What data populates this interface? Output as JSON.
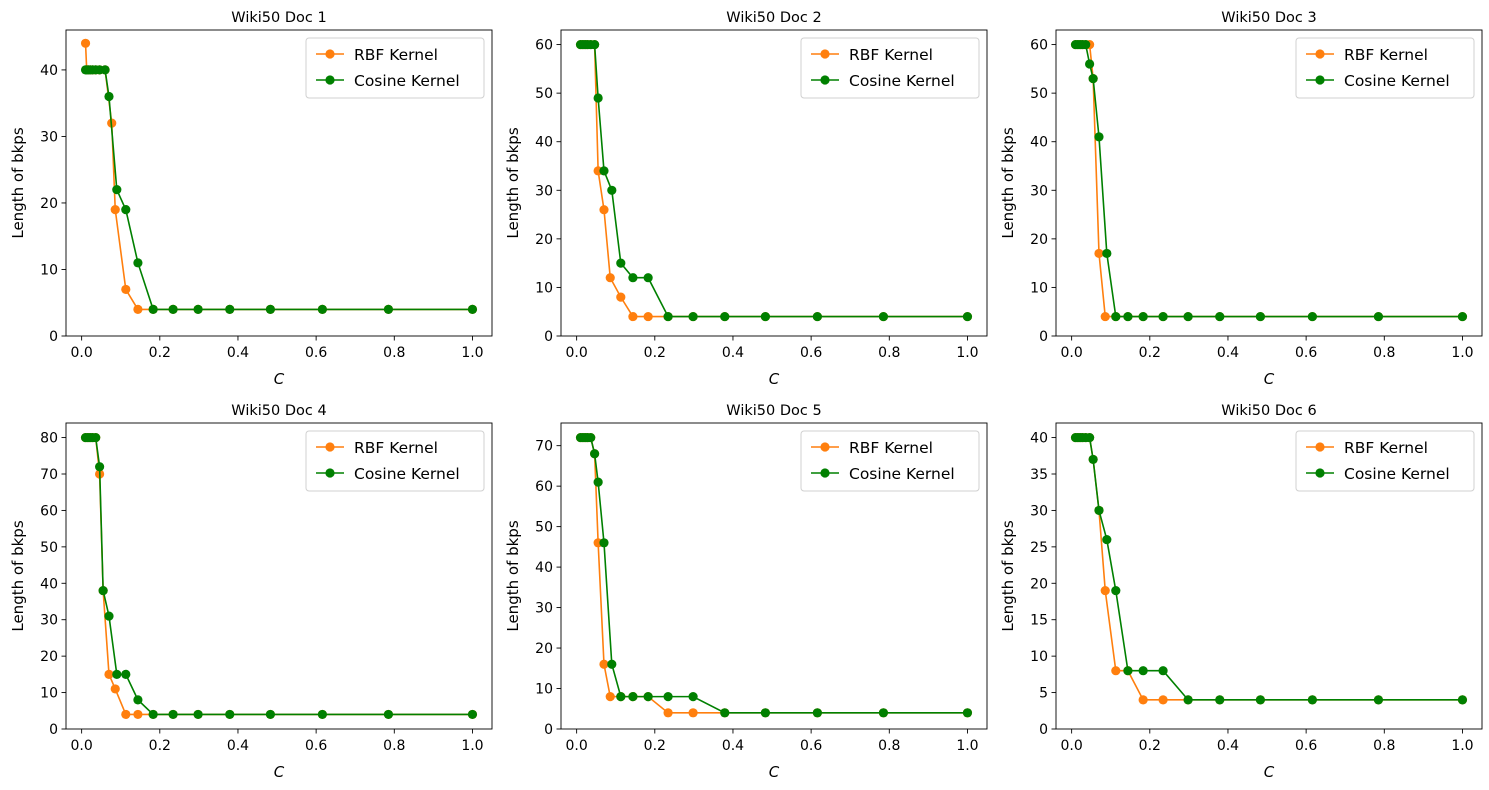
{
  "colors": {
    "rbf": "#ff7f0e",
    "cosine": "#008000"
  },
  "chart_data": [
    {
      "type": "line",
      "title": "Wiki50 Doc 1",
      "xlabel": "C",
      "ylabel": "Length of bkps",
      "xlim": [
        -0.04,
        1.05
      ],
      "ylim": [
        0,
        46
      ],
      "xticks": [
        "0.0",
        "0.2",
        "0.4",
        "0.6",
        "0.8",
        "1.0"
      ],
      "yticks": [
        "0",
        "10",
        "20",
        "30",
        "40"
      ],
      "legend_position": "upper right",
      "series": [
        {
          "name": "RBF Kernel",
          "x": [
            0.01,
            0.013,
            0.017,
            0.022,
            0.028,
            0.036,
            0.046,
            0.06,
            0.077,
            0.086,
            0.113,
            0.144,
            0.183,
            0.234,
            0.298,
            0.379,
            0.483,
            0.616,
            0.785,
            1.0
          ],
          "y": [
            44,
            40,
            40,
            40,
            40,
            40,
            40,
            40,
            32,
            19,
            7,
            4,
            4,
            4,
            4,
            4,
            4,
            4,
            4,
            4
          ]
        },
        {
          "name": "Cosine Kernel",
          "x": [
            0.01,
            0.013,
            0.017,
            0.022,
            0.028,
            0.036,
            0.046,
            0.06,
            0.07,
            0.09,
            0.113,
            0.144,
            0.183,
            0.234,
            0.298,
            0.379,
            0.483,
            0.616,
            0.785,
            1.0
          ],
          "y": [
            40,
            40,
            40,
            40,
            40,
            40,
            40,
            40,
            36,
            22,
            19,
            11,
            4,
            4,
            4,
            4,
            4,
            4,
            4,
            4
          ]
        }
      ]
    },
    {
      "type": "line",
      "title": "Wiki50 Doc 2",
      "xlabel": "C",
      "ylabel": "Length of bkps",
      "xlim": [
        -0.04,
        1.05
      ],
      "ylim": [
        0,
        63
      ],
      "xticks": [
        "0.0",
        "0.2",
        "0.4",
        "0.6",
        "0.8",
        "1.0"
      ],
      "yticks": [
        "0",
        "10",
        "20",
        "30",
        "40",
        "50",
        "60"
      ],
      "legend_position": "upper right",
      "series": [
        {
          "name": "RBF Kernel",
          "x": [
            0.01,
            0.016,
            0.022,
            0.028,
            0.036,
            0.046,
            0.055,
            0.07,
            0.086,
            0.113,
            0.144,
            0.183,
            0.234,
            0.298,
            0.379,
            0.483,
            0.616,
            0.785,
            1.0
          ],
          "y": [
            60,
            60,
            60,
            60,
            60,
            60,
            34,
            26,
            12,
            8,
            4,
            4,
            4,
            4,
            4,
            4,
            4,
            4,
            4
          ]
        },
        {
          "name": "Cosine Kernel",
          "x": [
            0.01,
            0.016,
            0.022,
            0.028,
            0.036,
            0.046,
            0.055,
            0.07,
            0.09,
            0.113,
            0.144,
            0.183,
            0.234,
            0.298,
            0.379,
            0.483,
            0.616,
            0.785,
            1.0
          ],
          "y": [
            60,
            60,
            60,
            60,
            60,
            60,
            49,
            34,
            30,
            15,
            12,
            12,
            4,
            4,
            4,
            4,
            4,
            4,
            4
          ]
        }
      ]
    },
    {
      "type": "line",
      "title": "Wiki50 Doc 3",
      "xlabel": "C",
      "ylabel": "Length of bkps",
      "xlim": [
        -0.04,
        1.05
      ],
      "ylim": [
        0,
        63
      ],
      "xticks": [
        "0.0",
        "0.2",
        "0.4",
        "0.6",
        "0.8",
        "1.0"
      ],
      "yticks": [
        "0",
        "10",
        "20",
        "30",
        "40",
        "50",
        "60"
      ],
      "legend_position": "upper right",
      "series": [
        {
          "name": "RBF Kernel",
          "x": [
            0.01,
            0.016,
            0.022,
            0.028,
            0.036,
            0.046,
            0.055,
            0.07,
            0.086,
            0.113,
            0.144,
            0.183,
            0.234,
            0.298,
            0.379,
            0.483,
            0.616,
            0.785,
            1.0
          ],
          "y": [
            60,
            60,
            60,
            60,
            60,
            60,
            53,
            17,
            4,
            4,
            4,
            4,
            4,
            4,
            4,
            4,
            4,
            4,
            4
          ]
        },
        {
          "name": "Cosine Kernel",
          "x": [
            0.01,
            0.016,
            0.022,
            0.028,
            0.036,
            0.046,
            0.055,
            0.07,
            0.09,
            0.113,
            0.144,
            0.183,
            0.234,
            0.298,
            0.379,
            0.483,
            0.616,
            0.785,
            1.0
          ],
          "y": [
            60,
            60,
            60,
            60,
            60,
            56,
            53,
            41,
            17,
            4,
            4,
            4,
            4,
            4,
            4,
            4,
            4,
            4,
            4
          ]
        }
      ]
    },
    {
      "type": "line",
      "title": "Wiki50 Doc 4",
      "xlabel": "C",
      "ylabel": "Length of bkps",
      "xlim": [
        -0.04,
        1.05
      ],
      "ylim": [
        0,
        84
      ],
      "xticks": [
        "0.0",
        "0.2",
        "0.4",
        "0.6",
        "0.8",
        "1.0"
      ],
      "yticks": [
        "0",
        "10",
        "20",
        "30",
        "40",
        "50",
        "60",
        "70",
        "80"
      ],
      "legend_position": "upper right",
      "series": [
        {
          "name": "RBF Kernel",
          "x": [
            0.01,
            0.016,
            0.022,
            0.028,
            0.036,
            0.046,
            0.055,
            0.07,
            0.086,
            0.113,
            0.144,
            0.183,
            0.234,
            0.298,
            0.379,
            0.483,
            0.616,
            0.785,
            1.0
          ],
          "y": [
            80,
            80,
            80,
            80,
            80,
            70,
            38,
            15,
            11,
            4,
            4,
            4,
            4,
            4,
            4,
            4,
            4,
            4,
            4
          ]
        },
        {
          "name": "Cosine Kernel",
          "x": [
            0.01,
            0.016,
            0.022,
            0.028,
            0.036,
            0.046,
            0.055,
            0.07,
            0.09,
            0.113,
            0.144,
            0.183,
            0.234,
            0.298,
            0.379,
            0.483,
            0.616,
            0.785,
            1.0
          ],
          "y": [
            80,
            80,
            80,
            80,
            80,
            72,
            38,
            31,
            15,
            15,
            8,
            4,
            4,
            4,
            4,
            4,
            4,
            4,
            4
          ]
        }
      ]
    },
    {
      "type": "line",
      "title": "Wiki50 Doc 5",
      "xlabel": "C",
      "ylabel": "Length of bkps",
      "xlim": [
        -0.04,
        1.05
      ],
      "ylim": [
        0,
        75.6
      ],
      "xticks": [
        "0.0",
        "0.2",
        "0.4",
        "0.6",
        "0.8",
        "1.0"
      ],
      "yticks": [
        "0",
        "10",
        "20",
        "30",
        "40",
        "50",
        "60",
        "70"
      ],
      "legend_position": "upper right",
      "series": [
        {
          "name": "RBF Kernel",
          "x": [
            0.01,
            0.016,
            0.022,
            0.028,
            0.036,
            0.046,
            0.055,
            0.07,
            0.086,
            0.113,
            0.144,
            0.183,
            0.234,
            0.298,
            0.379,
            0.483,
            0.616,
            0.785,
            1.0
          ],
          "y": [
            72,
            72,
            72,
            72,
            72,
            68,
            46,
            16,
            8,
            8,
            8,
            8,
            4,
            4,
            4,
            4,
            4,
            4,
            4
          ]
        },
        {
          "name": "Cosine Kernel",
          "x": [
            0.01,
            0.016,
            0.022,
            0.028,
            0.036,
            0.046,
            0.055,
            0.07,
            0.09,
            0.113,
            0.144,
            0.183,
            0.234,
            0.298,
            0.379,
            0.483,
            0.616,
            0.785,
            1.0
          ],
          "y": [
            72,
            72,
            72,
            72,
            72,
            68,
            61,
            46,
            16,
            8,
            8,
            8,
            8,
            8,
            4,
            4,
            4,
            4,
            4
          ]
        }
      ]
    },
    {
      "type": "line",
      "title": "Wiki50 Doc 6",
      "xlabel": "C",
      "ylabel": "Length of bkps",
      "xlim": [
        -0.04,
        1.05
      ],
      "ylim": [
        0,
        42
      ],
      "xticks": [
        "0.0",
        "0.2",
        "0.4",
        "0.6",
        "0.8",
        "1.0"
      ],
      "yticks": [
        "0",
        "5",
        "10",
        "15",
        "20",
        "25",
        "30",
        "35",
        "40"
      ],
      "legend_position": "upper right",
      "series": [
        {
          "name": "RBF Kernel",
          "x": [
            0.01,
            0.016,
            0.022,
            0.028,
            0.036,
            0.046,
            0.055,
            0.07,
            0.086,
            0.113,
            0.144,
            0.183,
            0.234,
            0.298,
            0.379,
            0.483,
            0.616,
            0.785,
            1.0
          ],
          "y": [
            40,
            40,
            40,
            40,
            40,
            40,
            37,
            30,
            19,
            8,
            8,
            4,
            4,
            4,
            4,
            4,
            4,
            4,
            4
          ]
        },
        {
          "name": "Cosine Kernel",
          "x": [
            0.01,
            0.016,
            0.022,
            0.028,
            0.036,
            0.046,
            0.055,
            0.07,
            0.09,
            0.113,
            0.144,
            0.183,
            0.234,
            0.298,
            0.379,
            0.483,
            0.616,
            0.785,
            1.0
          ],
          "y": [
            40,
            40,
            40,
            40,
            40,
            40,
            37,
            30,
            26,
            19,
            8,
            8,
            8,
            4,
            4,
            4,
            4,
            4,
            4
          ]
        }
      ]
    }
  ]
}
